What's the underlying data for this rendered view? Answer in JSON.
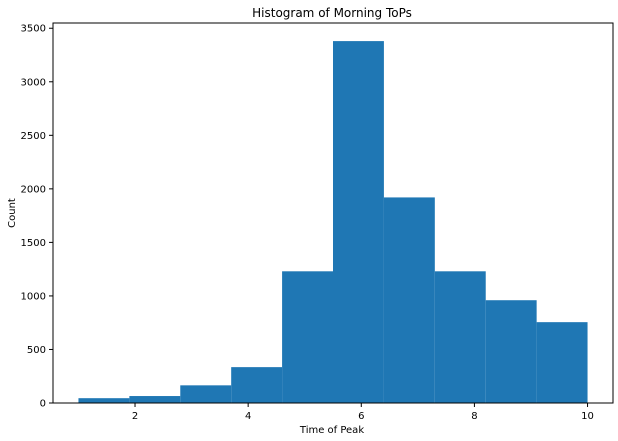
{
  "chart_data": {
    "type": "bar",
    "title": "Histogram of Morning ToPs",
    "xlabel": "Time of Peak",
    "ylabel": "Count",
    "bins": [
      {
        "start": 1.0,
        "end": 1.9,
        "value": 45
      },
      {
        "start": 1.9,
        "end": 2.8,
        "value": 65
      },
      {
        "start": 2.8,
        "end": 3.7,
        "value": 165
      },
      {
        "start": 3.7,
        "end": 4.6,
        "value": 335
      },
      {
        "start": 4.6,
        "end": 5.5,
        "value": 1230
      },
      {
        "start": 5.5,
        "end": 6.4,
        "value": 3380
      },
      {
        "start": 6.4,
        "end": 7.3,
        "value": 1920
      },
      {
        "start": 7.3,
        "end": 8.2,
        "value": 1230
      },
      {
        "start": 8.2,
        "end": 9.1,
        "value": 960
      },
      {
        "start": 9.1,
        "end": 10.0,
        "value": 755
      }
    ],
    "xlim": [
      0.55,
      10.45
    ],
    "ylim": [
      0,
      3549
    ],
    "xticks": [
      2,
      4,
      6,
      8,
      10
    ],
    "yticks": [
      0,
      500,
      1000,
      1500,
      2000,
      2500,
      3000,
      3500
    ],
    "bar_color": "#1f77b4",
    "grid": false,
    "legend": "none"
  }
}
